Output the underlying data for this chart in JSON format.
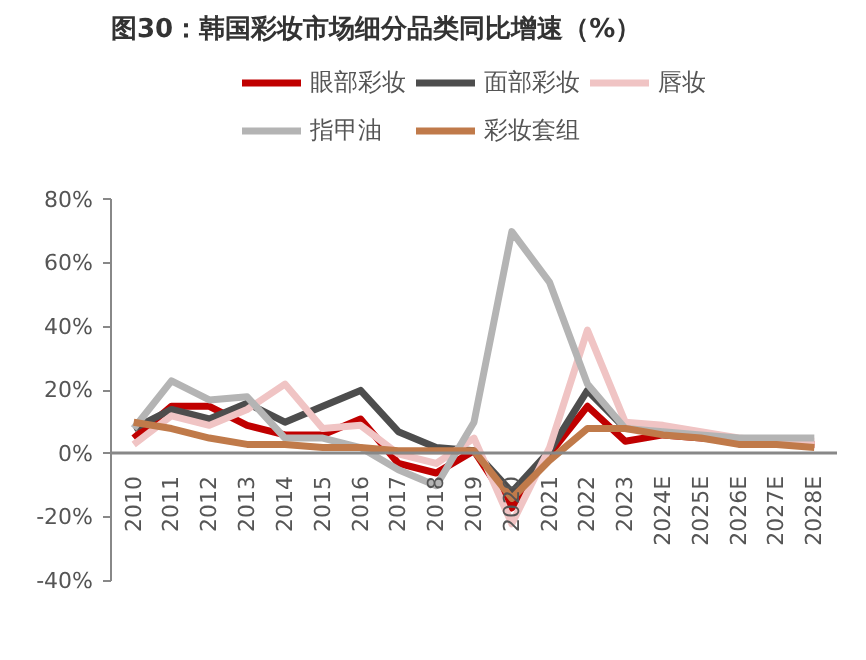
{
  "chart_data": {
    "type": "line",
    "title": "图30：韩国彩妆市场细分品类同比增速（%）",
    "categories": [
      "2010",
      "2011",
      "2012",
      "2013",
      "2014",
      "2015",
      "2016",
      "2017",
      "2018",
      "2019",
      "2020",
      "2021",
      "2022",
      "2023",
      "2024E",
      "2025E",
      "2026E",
      "2027E",
      "2028E"
    ],
    "series": [
      {
        "name": "眼部彩妆",
        "color": "#c00000",
        "values": [
          5,
          15,
          15,
          9,
          6,
          6,
          11,
          -3,
          -6,
          1,
          -17,
          0,
          15,
          4,
          6,
          5,
          4,
          3,
          3
        ]
      },
      {
        "name": "面部彩妆",
        "color": "#4d4d4d",
        "values": [
          8,
          14,
          11,
          16,
          10,
          15,
          20,
          7,
          2,
          1,
          -12,
          1,
          20,
          8,
          null,
          null,
          null,
          null,
          null
        ]
      },
      {
        "name": "唇妆",
        "color": "#f0c4c4",
        "values": [
          3,
          12,
          9,
          14,
          22,
          8,
          9,
          0,
          -3,
          5,
          -22,
          2,
          39,
          10,
          9,
          7,
          5,
          4,
          4
        ]
      },
      {
        "name": "指甲油",
        "color": "#b4b4b4",
        "values": [
          8,
          23,
          17,
          18,
          5,
          5,
          2,
          -5,
          -10,
          10,
          70,
          54,
          22,
          8,
          7,
          6,
          5,
          5,
          5
        ]
      },
      {
        "name": "彩妆套组",
        "color": "#c07a4a",
        "values": [
          10,
          8,
          5,
          3,
          3,
          2,
          2,
          1,
          1,
          1,
          -14,
          -2,
          8,
          8,
          6,
          5,
          3,
          3,
          2
        ]
      }
    ],
    "ylim": [
      -40,
      80
    ],
    "yticks": [
      {
        "value": -40,
        "label": "-40%"
      },
      {
        "value": -20,
        "label": "-20%"
      },
      {
        "value": 0,
        "label": "0%"
      },
      {
        "value": 20,
        "label": "20%"
      },
      {
        "value": 40,
        "label": "40%"
      },
      {
        "value": 60,
        "label": "60%"
      },
      {
        "value": 80,
        "label": "80%"
      }
    ],
    "grid": false,
    "legend": "top",
    "line_style": "solid",
    "marker": "none"
  }
}
